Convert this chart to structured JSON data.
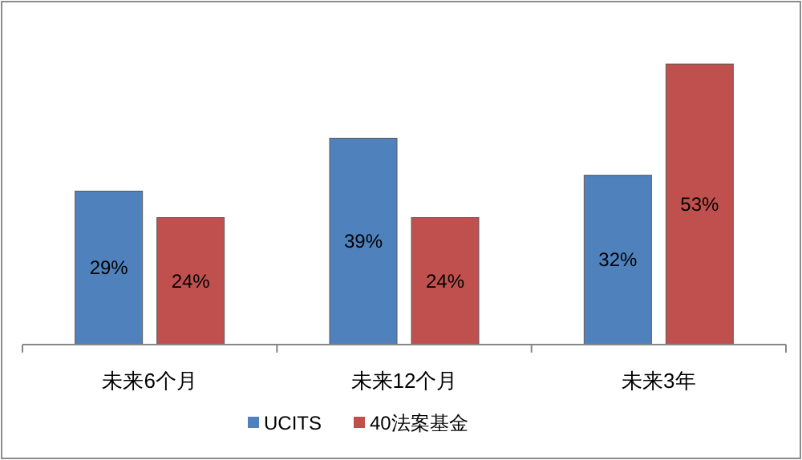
{
  "chart_data": {
    "type": "bar",
    "categories": [
      "未来6个月",
      "未来12个月",
      "未来3年"
    ],
    "series": [
      {
        "name": "UCITS",
        "color": "#4f81bd",
        "values": [
          29,
          39,
          32
        ],
        "value_labels": [
          "29%",
          "39%",
          "32%"
        ]
      },
      {
        "name": "40法案基金",
        "color": "#c0504d",
        "values": [
          24,
          24,
          53
        ],
        "value_labels": [
          "24%",
          "24%",
          "53%"
        ]
      }
    ],
    "legend": "bottom"
  }
}
